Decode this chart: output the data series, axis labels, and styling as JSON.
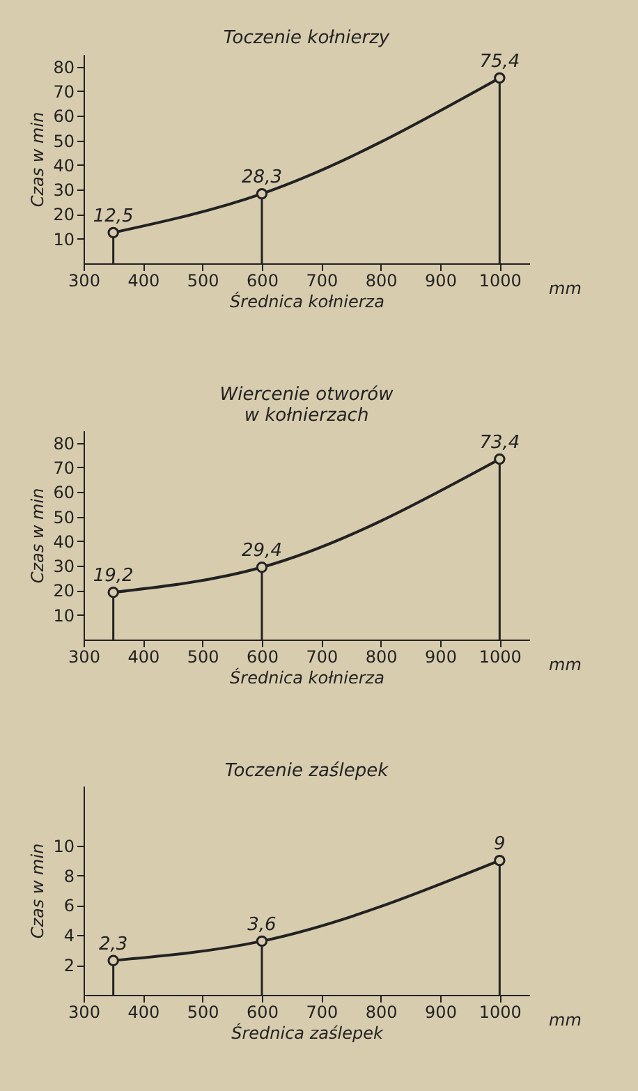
{
  "chart_data": [
    {
      "type": "line",
      "title": "Toczenie kołnierzy",
      "xlabel": "Średnica kołnierza",
      "ylabel": "Czas w min",
      "annotations": [
        "mm"
      ],
      "x": [
        350,
        600,
        1000
      ],
      "series": [
        {
          "color": "#222222",
          "values": [
            12.5,
            28.3,
            75.4
          ],
          "value_labels": [
            "12,5",
            "28,3",
            "75,4"
          ]
        }
      ],
      "xlim": [
        300,
        1050
      ],
      "xticks": [
        300,
        400,
        500,
        600,
        700,
        800,
        900,
        1000
      ],
      "ylim": [
        0,
        85
      ],
      "yticks": [
        10,
        20,
        30,
        40,
        50,
        60,
        70,
        80
      ],
      "marker": "circle"
    },
    {
      "type": "line",
      "title": "Wiercenie otworów\nw kołnierzach",
      "xlabel": "Średnica kołnierza",
      "ylabel": "Czas w min",
      "annotations": [
        "mm"
      ],
      "x": [
        350,
        600,
        1000
      ],
      "series": [
        {
          "color": "#222222",
          "values": [
            19.2,
            29.4,
            73.4
          ],
          "value_labels": [
            "19,2",
            "29,4",
            "73,4"
          ]
        }
      ],
      "xlim": [
        300,
        1050
      ],
      "xticks": [
        300,
        400,
        500,
        600,
        700,
        800,
        900,
        1000
      ],
      "ylim": [
        0,
        85
      ],
      "yticks": [
        10,
        20,
        30,
        40,
        50,
        60,
        70,
        80
      ],
      "marker": "circle"
    },
    {
      "type": "line",
      "title": "Toczenie zaślepek",
      "xlabel": "Średnica zaślepek",
      "ylabel": "Czas w min",
      "annotations": [
        "mm"
      ],
      "x": [
        350,
        600,
        1000
      ],
      "series": [
        {
          "color": "#222222",
          "values": [
            2.3,
            3.6,
            9
          ],
          "value_labels": [
            "2,3",
            "3,6",
            "9"
          ]
        }
      ],
      "xlim": [
        300,
        1050
      ],
      "xticks": [
        300,
        400,
        500,
        600,
        700,
        800,
        900,
        1000
      ],
      "ylim": [
        0,
        14
      ],
      "yticks": [
        2,
        4,
        6,
        8,
        10
      ],
      "marker": "circle"
    }
  ]
}
